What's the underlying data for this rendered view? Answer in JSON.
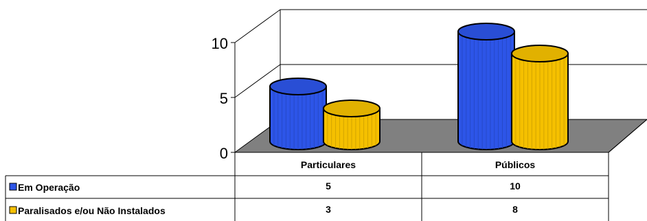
{
  "chart_data": {
    "type": "bar",
    "style": "3d-cylinder",
    "categories": [
      "Particulares",
      "Públicos"
    ],
    "series": [
      {
        "name": "Em Operação",
        "values": [
          5,
          10
        ],
        "color": "#2d55e8"
      },
      {
        "name": "Paralisados e/ou Não Instalados",
        "values": [
          3,
          8
        ],
        "color": "#f5c000"
      }
    ],
    "yticks": [
      "0",
      "5",
      "10"
    ],
    "ylim": [
      0,
      10
    ],
    "grid": true,
    "legend": "data-table-left",
    "floor_color": "#808080"
  }
}
